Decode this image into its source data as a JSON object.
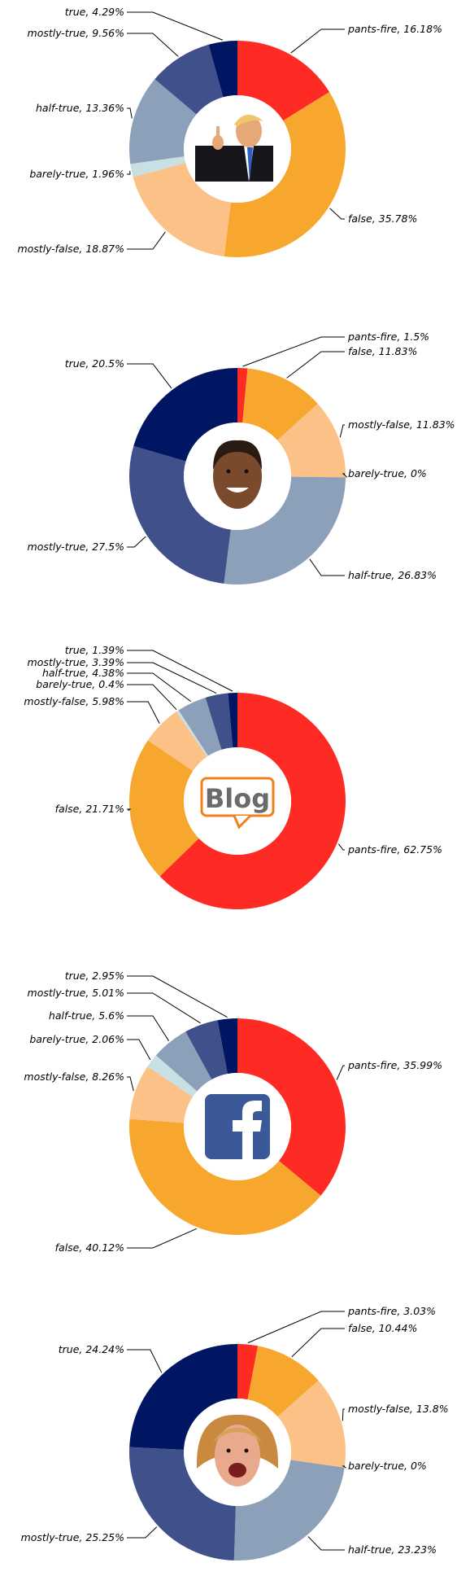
{
  "colors": {
    "pants-fire": "#fe2b25",
    "false": "#f8a72e",
    "mostly-false": "#fbc187",
    "barely-true": "#c8dfe3",
    "half-true": "#8da0b9",
    "mostly-true": "#40508a",
    "true": "#001662"
  },
  "chart_data": [
    {
      "type": "pie",
      "style": "donut",
      "center_image": "donald-trump-photo",
      "slices": [
        {
          "label": "pants-fire",
          "value": 16.18
        },
        {
          "label": "false",
          "value": 35.78
        },
        {
          "label": "mostly-false",
          "value": 18.87
        },
        {
          "label": "barely-true",
          "value": 1.96
        },
        {
          "label": "half-true",
          "value": 13.36
        },
        {
          "label": "mostly-true",
          "value": 9.56
        },
        {
          "label": "true",
          "value": 4.29
        }
      ]
    },
    {
      "type": "pie",
      "style": "donut",
      "center_image": "barack-obama-photo",
      "slices": [
        {
          "label": "pants-fire",
          "value": 1.5
        },
        {
          "label": "false",
          "value": 11.83
        },
        {
          "label": "mostly-false",
          "value": 11.83
        },
        {
          "label": "barely-true",
          "value": 0.0
        },
        {
          "label": "half-true",
          "value": 26.83
        },
        {
          "label": "mostly-true",
          "value": 27.5
        },
        {
          "label": "true",
          "value": 20.5
        }
      ]
    },
    {
      "type": "pie",
      "style": "donut",
      "center_image": "blog-logo",
      "center_text": "Blog",
      "slices": [
        {
          "label": "pants-fire",
          "value": 62.75
        },
        {
          "label": "false",
          "value": 21.71
        },
        {
          "label": "mostly-false",
          "value": 5.98
        },
        {
          "label": "barely-true",
          "value": 0.4
        },
        {
          "label": "half-true",
          "value": 4.38
        },
        {
          "label": "mostly-true",
          "value": 3.39
        },
        {
          "label": "true",
          "value": 1.39
        }
      ]
    },
    {
      "type": "pie",
      "style": "donut",
      "center_image": "facebook-logo",
      "slices": [
        {
          "label": "pants-fire",
          "value": 35.99
        },
        {
          "label": "false",
          "value": 40.12
        },
        {
          "label": "mostly-false",
          "value": 8.26
        },
        {
          "label": "barely-true",
          "value": 2.06
        },
        {
          "label": "half-true",
          "value": 5.6
        },
        {
          "label": "mostly-true",
          "value": 5.01
        },
        {
          "label": "true",
          "value": 2.95
        }
      ]
    },
    {
      "type": "pie",
      "style": "donut",
      "center_image": "hillary-clinton-photo",
      "slices": [
        {
          "label": "pants-fire",
          "value": 3.03
        },
        {
          "label": "false",
          "value": 10.44
        },
        {
          "label": "mostly-false",
          "value": 13.8
        },
        {
          "label": "barely-true",
          "value": 0.0
        },
        {
          "label": "half-true",
          "value": 23.23
        },
        {
          "label": "mostly-true",
          "value": 25.25
        },
        {
          "label": "true",
          "value": 24.24
        }
      ]
    }
  ]
}
